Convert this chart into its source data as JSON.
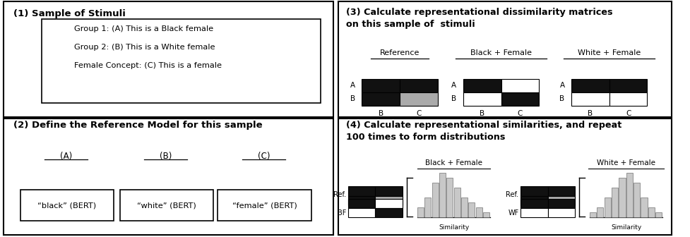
{
  "fig_width": 9.78,
  "fig_height": 3.36,
  "bg_color": "#ffffff",
  "panel1": {
    "title": "(1) Sample of Stimuli",
    "lines": [
      "Group 1: (A) This is a Black female",
      "Group 2: (B) This is a White female",
      "Female Concept: (C) This is a female"
    ]
  },
  "panel2": {
    "title": "(2) Define the Reference Model for this sample",
    "labels": [
      "(A)",
      "(B)",
      "(C)"
    ],
    "boxes": [
      "“black” (BERT)",
      "“white” (BERT)",
      "“female” (BERT)"
    ]
  },
  "panel3": {
    "title": "(3) Calculate representational dissimilarity matrices\non this sample of  stimuli",
    "matrix_titles": [
      "Reference",
      "Black + Female",
      "White + Female"
    ]
  },
  "panel4": {
    "title": "(4) Calculate representational similarities, and repeat\n100 times to form distributions"
  }
}
